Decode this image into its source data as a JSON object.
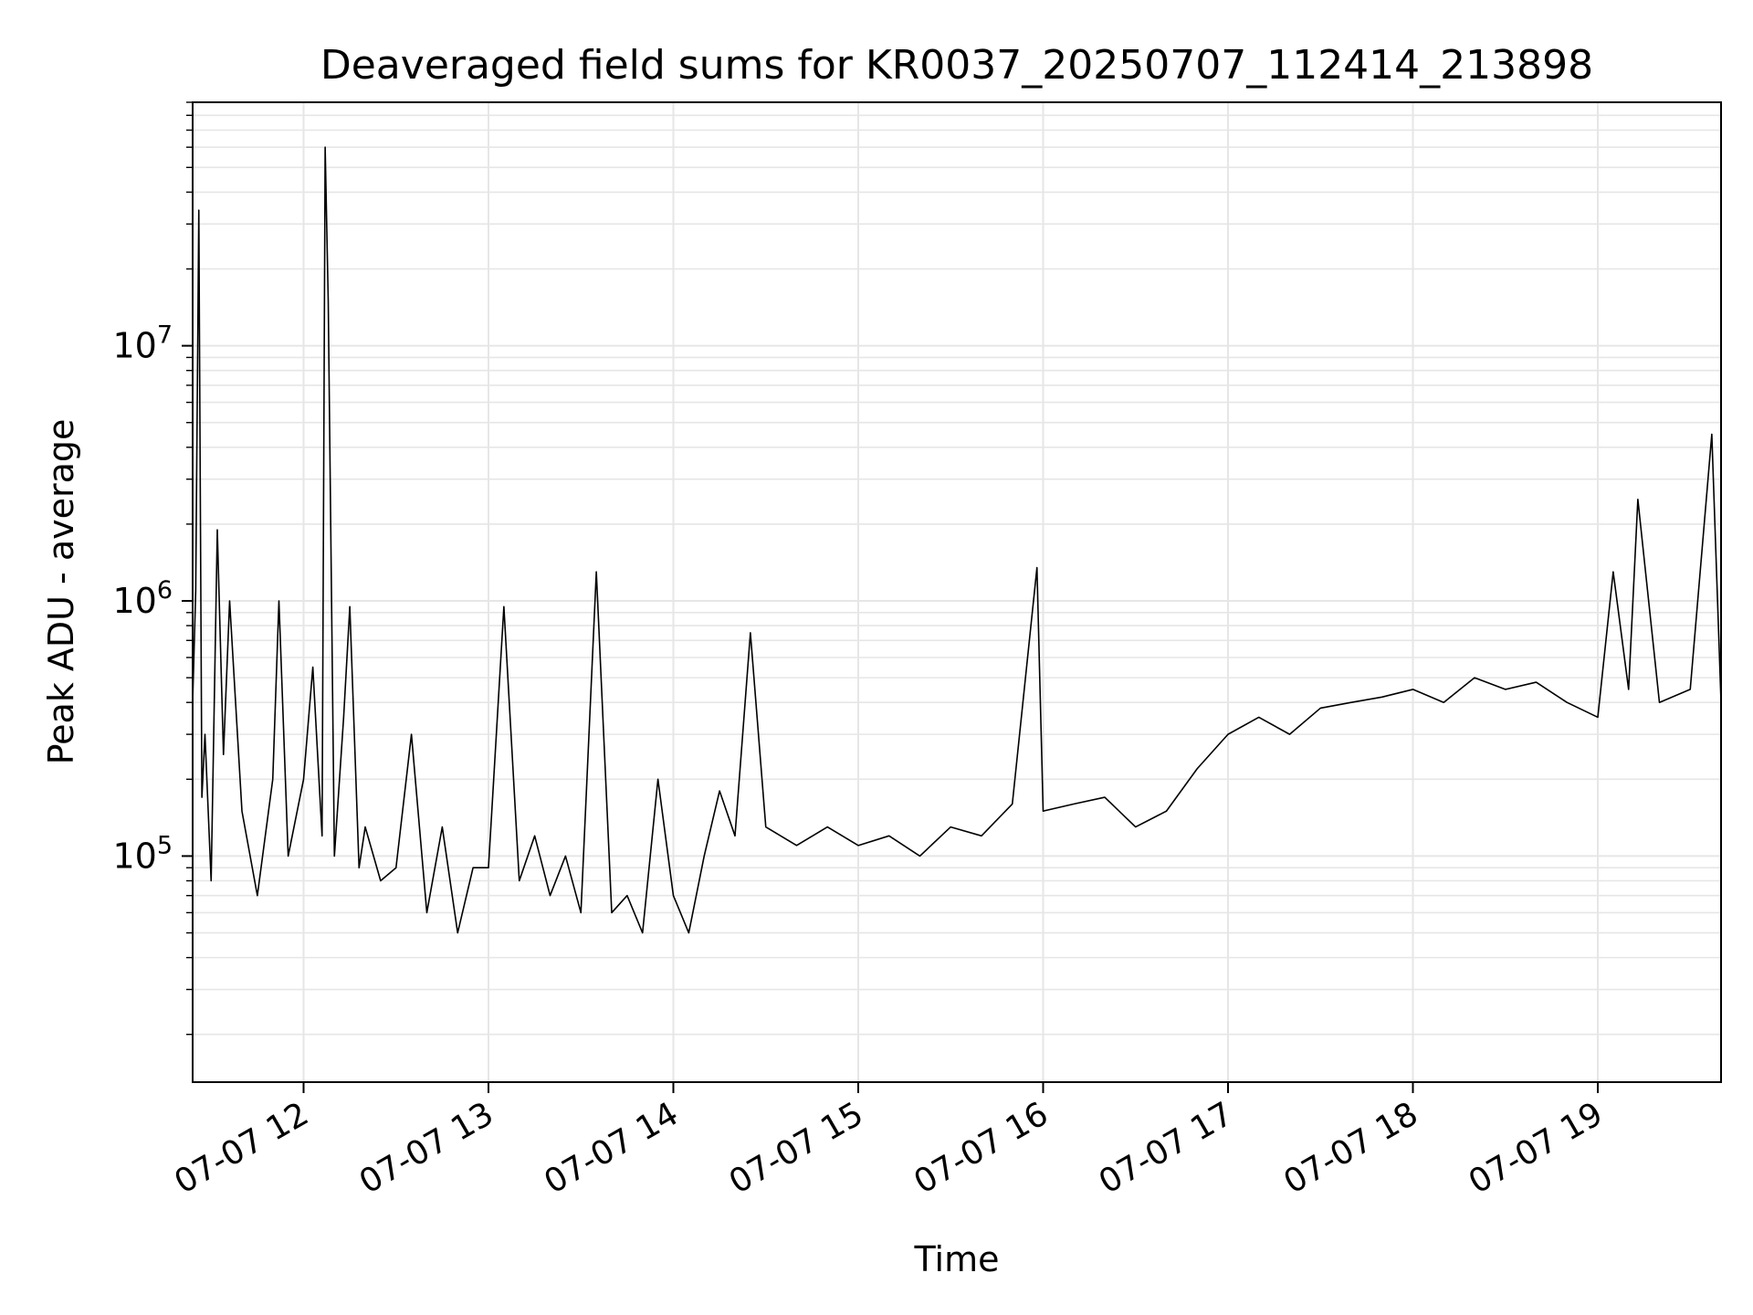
{
  "chart_data": {
    "type": "line",
    "title": "Deaveraged field sums for KR0037_20250707_112414_213898",
    "xlabel": "Time",
    "ylabel": "Peak ADU - average",
    "y_scale": "log",
    "ylim": [
      13000,
      90000000
    ],
    "x_range": [
      "2025-07-07 11:24",
      "2025-07-07 19:40"
    ],
    "grid": true,
    "grid_color": "#e6e6e6",
    "line_color": "#000000",
    "x_ticks": [
      {
        "time": "2025-07-07 12:00",
        "label": "07-07 12"
      },
      {
        "time": "2025-07-07 13:00",
        "label": "07-07 13"
      },
      {
        "time": "2025-07-07 14:00",
        "label": "07-07 14"
      },
      {
        "time": "2025-07-07 15:00",
        "label": "07-07 15"
      },
      {
        "time": "2025-07-07 16:00",
        "label": "07-07 16"
      },
      {
        "time": "2025-07-07 17:00",
        "label": "07-07 17"
      },
      {
        "time": "2025-07-07 18:00",
        "label": "07-07 18"
      },
      {
        "time": "2025-07-07 19:00",
        "label": "07-07 19"
      }
    ],
    "y_ticks": [
      {
        "value": 100000,
        "base": "10",
        "exp": "5"
      },
      {
        "value": 1000000,
        "base": "10",
        "exp": "6"
      },
      {
        "value": 10000000,
        "base": "10",
        "exp": "7"
      }
    ],
    "series": [
      {
        "points": [
          [
            "2025-07-07 11:24",
            400000
          ],
          [
            "2025-07-07 11:25",
            1100000
          ],
          [
            "2025-07-07 11:26",
            34000000
          ],
          [
            "2025-07-07 11:27",
            170000
          ],
          [
            "2025-07-07 11:28",
            300000
          ],
          [
            "2025-07-07 11:30",
            80000
          ],
          [
            "2025-07-07 11:32",
            1900000
          ],
          [
            "2025-07-07 11:34",
            250000
          ],
          [
            "2025-07-07 11:36",
            1000000
          ],
          [
            "2025-07-07 11:40",
            150000
          ],
          [
            "2025-07-07 11:45",
            70000
          ],
          [
            "2025-07-07 11:50",
            200000
          ],
          [
            "2025-07-07 11:52",
            1000000
          ],
          [
            "2025-07-07 11:55",
            100000
          ],
          [
            "2025-07-07 12:00",
            200000
          ],
          [
            "2025-07-07 12:03",
            550000
          ],
          [
            "2025-07-07 12:06",
            120000
          ],
          [
            "2025-07-07 12:07",
            60000000
          ],
          [
            "2025-07-07 12:08",
            15000000
          ],
          [
            "2025-07-07 12:10",
            100000
          ],
          [
            "2025-07-07 12:13",
            350000
          ],
          [
            "2025-07-07 12:15",
            950000
          ],
          [
            "2025-07-07 12:18",
            90000
          ],
          [
            "2025-07-07 12:20",
            130000
          ],
          [
            "2025-07-07 12:25",
            80000
          ],
          [
            "2025-07-07 12:30",
            90000
          ],
          [
            "2025-07-07 12:35",
            300000
          ],
          [
            "2025-07-07 12:40",
            60000
          ],
          [
            "2025-07-07 12:45",
            130000
          ],
          [
            "2025-07-07 12:50",
            50000
          ],
          [
            "2025-07-07 12:55",
            90000
          ],
          [
            "2025-07-07 13:00",
            90000
          ],
          [
            "2025-07-07 13:05",
            950000
          ],
          [
            "2025-07-07 13:10",
            80000
          ],
          [
            "2025-07-07 13:15",
            120000
          ],
          [
            "2025-07-07 13:20",
            70000
          ],
          [
            "2025-07-07 13:25",
            100000
          ],
          [
            "2025-07-07 13:30",
            60000
          ],
          [
            "2025-07-07 13:35",
            1300000
          ],
          [
            "2025-07-07 13:40",
            60000
          ],
          [
            "2025-07-07 13:45",
            70000
          ],
          [
            "2025-07-07 13:50",
            50000
          ],
          [
            "2025-07-07 13:55",
            200000
          ],
          [
            "2025-07-07 14:00",
            70000
          ],
          [
            "2025-07-07 14:05",
            50000
          ],
          [
            "2025-07-07 14:10",
            100000
          ],
          [
            "2025-07-07 14:15",
            180000
          ],
          [
            "2025-07-07 14:20",
            120000
          ],
          [
            "2025-07-07 14:25",
            750000
          ],
          [
            "2025-07-07 14:30",
            130000
          ],
          [
            "2025-07-07 14:40",
            110000
          ],
          [
            "2025-07-07 14:50",
            130000
          ],
          [
            "2025-07-07 15:00",
            110000
          ],
          [
            "2025-07-07 15:10",
            120000
          ],
          [
            "2025-07-07 15:20",
            100000
          ],
          [
            "2025-07-07 15:30",
            130000
          ],
          [
            "2025-07-07 15:40",
            120000
          ],
          [
            "2025-07-07 15:50",
            160000
          ],
          [
            "2025-07-07 15:58",
            1350000
          ],
          [
            "2025-07-07 16:00",
            150000
          ],
          [
            "2025-07-07 16:10",
            160000
          ],
          [
            "2025-07-07 16:20",
            170000
          ],
          [
            "2025-07-07 16:30",
            130000
          ],
          [
            "2025-07-07 16:40",
            150000
          ],
          [
            "2025-07-07 16:50",
            220000
          ],
          [
            "2025-07-07 17:00",
            300000
          ],
          [
            "2025-07-07 17:10",
            350000
          ],
          [
            "2025-07-07 17:20",
            300000
          ],
          [
            "2025-07-07 17:30",
            380000
          ],
          [
            "2025-07-07 17:40",
            400000
          ],
          [
            "2025-07-07 17:50",
            420000
          ],
          [
            "2025-07-07 18:00",
            450000
          ],
          [
            "2025-07-07 18:10",
            400000
          ],
          [
            "2025-07-07 18:20",
            500000
          ],
          [
            "2025-07-07 18:30",
            450000
          ],
          [
            "2025-07-07 18:40",
            480000
          ],
          [
            "2025-07-07 18:50",
            400000
          ],
          [
            "2025-07-07 19:00",
            350000
          ],
          [
            "2025-07-07 19:05",
            1300000
          ],
          [
            "2025-07-07 19:10",
            450000
          ],
          [
            "2025-07-07 19:13",
            2500000
          ],
          [
            "2025-07-07 19:20",
            400000
          ],
          [
            "2025-07-07 19:30",
            450000
          ],
          [
            "2025-07-07 19:37",
            4500000
          ],
          [
            "2025-07-07 19:40",
            400000
          ]
        ]
      }
    ]
  }
}
